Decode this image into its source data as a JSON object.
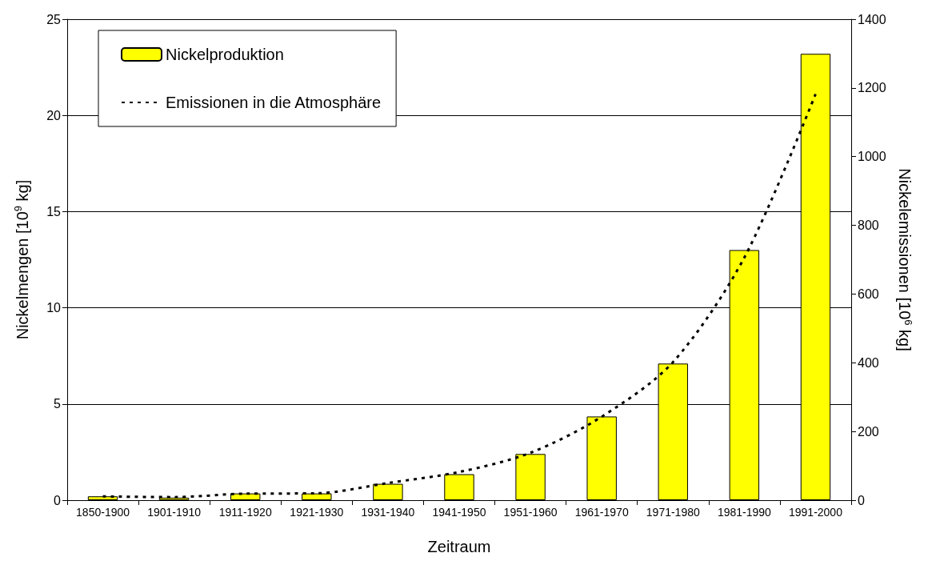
{
  "chart_data": {
    "type": "bar",
    "xlabel": "Zeitraum",
    "ylabel": "Nickelmengen [10$^{9}$ kg]",
    "y2label": "Nickelemissionen [10$^{6}$ kg]",
    "categories": [
      "1850-1900",
      "1901-1910",
      "1911-1920",
      "1921-1930",
      "1931-1940",
      "1941-1950",
      "1951-1960",
      "1961-1970",
      "1971-1980",
      "1981-1990",
      "1991-2000"
    ],
    "series": [
      {
        "name": "Nickelproduktion",
        "color": "#ffff00",
        "values": [
          0.2,
          0.13,
          0.35,
          0.35,
          0.85,
          1.35,
          2.4,
          4.35,
          7.1,
          13.0,
          23.2
        ]
      },
      {
        "name": "Emissionen in die Atmosphäre",
        "type": "line",
        "axis": "y2",
        "color": "#000000",
        "line_style": "dashed",
        "marker": "none",
        "values": [
          11,
          9,
          19,
          20,
          50,
          82,
          138,
          243,
          402,
          706,
          1182
        ]
      }
    ],
    "ylim": [
      0,
      25
    ],
    "yticks": [
      0,
      5,
      10,
      15,
      20,
      25
    ],
    "y2lim": [
      0,
      1400
    ],
    "y2ticks": [
      0,
      200,
      400,
      600,
      800,
      1000,
      1200,
      1400
    ],
    "grid": "y",
    "legend": "top left"
  }
}
